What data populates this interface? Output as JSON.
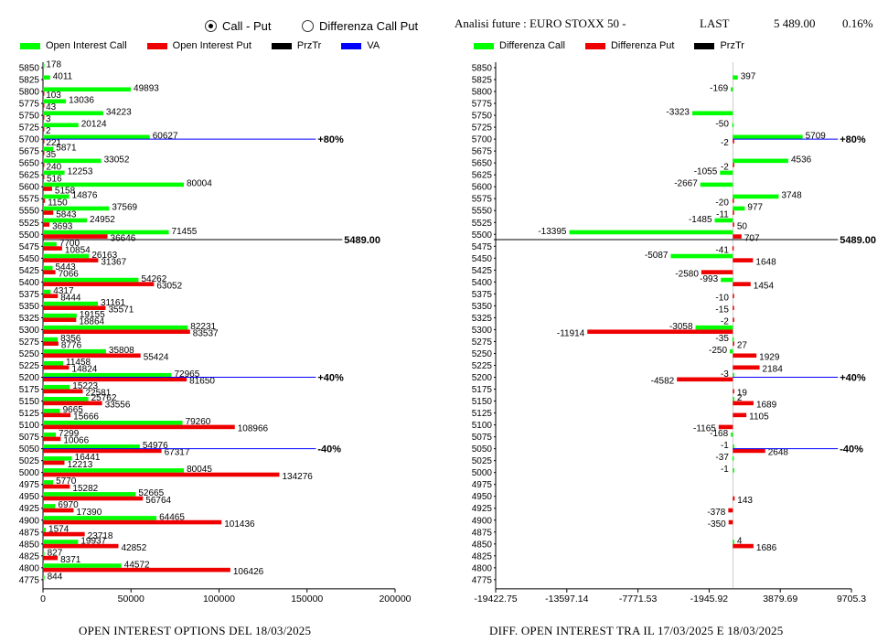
{
  "controls": {
    "radio_call_put": "Call - Put",
    "radio_diff": "Differenza Call Put",
    "selected": "Call - Put"
  },
  "header": {
    "title": "Analisi future : EURO STOXX 50 -",
    "last_label": "LAST",
    "last_value": "5 489.00",
    "change": "0.16%"
  },
  "legend_left": [
    {
      "label": "Open Interest Call",
      "color": "#00ff00"
    },
    {
      "label": "Open Interest Put",
      "color": "#ee0000"
    },
    {
      "label": "PrzTr",
      "color": "#000000"
    },
    {
      "label": "VA",
      "color": "#0000ff"
    }
  ],
  "legend_right": [
    {
      "label": "Differenza Call",
      "color": "#00ff00"
    },
    {
      "label": "Differenza Put",
      "color": "#ee0000"
    },
    {
      "label": "PrzTr",
      "color": "#000000"
    }
  ],
  "footer": {
    "left": "OPEN INTEREST OPTIONS DEL 18/03/2025",
    "right": "DIFF. OPEN INTEREST TRA IL 17/03/2025 E 18/03/2025"
  },
  "chart_data": [
    {
      "type": "bar",
      "orientation": "horizontal",
      "categories": [
        "5850",
        "5825",
        "5800",
        "5775",
        "5750",
        "5725",
        "5700",
        "5675",
        "5650",
        "5625",
        "5600",
        "5575",
        "5550",
        "5525",
        "5500",
        "5475",
        "5450",
        "5425",
        "5400",
        "5375",
        "5350",
        "5325",
        "5300",
        "5275",
        "5250",
        "5225",
        "5200",
        "5175",
        "5150",
        "5125",
        "5100",
        "5075",
        "5050",
        "5025",
        "5000",
        "4975",
        "4950",
        "4925",
        "4900",
        "4875",
        "4850",
        "4825",
        "4800",
        "4775"
      ],
      "series": [
        {
          "name": "Open Interest Call",
          "color": "#00ff00",
          "values": [
            178,
            4011,
            49893,
            13036,
            34223,
            20124,
            60627,
            5871,
            33052,
            12253,
            80004,
            14876,
            37569,
            24952,
            71455,
            7700,
            26163,
            5443,
            54262,
            4317,
            31161,
            19155,
            82231,
            8356,
            35808,
            11458,
            72965,
            15223,
            25762,
            9665,
            79260,
            7299,
            54976,
            16441,
            80045,
            5770,
            52665,
            6970,
            64465,
            1574,
            19937,
            827,
            44572,
            844
          ]
        },
        {
          "name": "Open Interest Put",
          "color": "#ee0000",
          "values": [
            null,
            null,
            103,
            43,
            3,
            2,
            221,
            35,
            240,
            516,
            5158,
            1150,
            5843,
            3693,
            36646,
            10854,
            31367,
            7066,
            63052,
            8444,
            35571,
            18864,
            83537,
            8776,
            55424,
            14824,
            81650,
            22581,
            33556,
            15666,
            108966,
            10066,
            67317,
            12213,
            134276,
            15282,
            56764,
            17390,
            101436,
            23718,
            42852,
            8371,
            106426,
            null
          ]
        }
      ],
      "markers": [
        {
          "level": "5700",
          "label": "+80%",
          "value": 155000,
          "color": "#0000ff"
        },
        {
          "level": "5489",
          "label": "5489.00",
          "value": 170000,
          "color": "#000000"
        },
        {
          "level": "5200",
          "label": "+40%",
          "value": 155000,
          "color": "#0000ff"
        },
        {
          "level": "5050",
          "label": "-40%",
          "value": 155000,
          "color": "#0000ff"
        }
      ],
      "xticks": [
        "0",
        "50000",
        "100000",
        "150000",
        "200000"
      ],
      "xlim": [
        0,
        200000
      ]
    },
    {
      "type": "bar",
      "orientation": "horizontal",
      "categories": [
        "5850",
        "5825",
        "5800",
        "5775",
        "5750",
        "5725",
        "5700",
        "5675",
        "5650",
        "5625",
        "5600",
        "5575",
        "5550",
        "5525",
        "5500",
        "5475",
        "5450",
        "5425",
        "5400",
        "5375",
        "5350",
        "5325",
        "5300",
        "5275",
        "5250",
        "5225",
        "5200",
        "5175",
        "5150",
        "5125",
        "5100",
        "5075",
        "5050",
        "5025",
        "5000",
        "4975",
        "4950",
        "4925",
        "4900",
        "4875",
        "4850",
        "4825",
        "4800",
        "4775"
      ],
      "series": [
        {
          "name": "Differenza Call",
          "color": "#00ff00",
          "values": [
            null,
            397,
            -169,
            null,
            -3323,
            -50,
            5709,
            null,
            4536,
            -1055,
            -2667,
            3748,
            977,
            -1485,
            -13395,
            null,
            -5087,
            null,
            -993,
            null,
            null,
            null,
            -3058,
            -35,
            -250,
            null,
            -3,
            null,
            2,
            null,
            null,
            -168,
            -1,
            -37,
            -1,
            null,
            null,
            null,
            null,
            null,
            4,
            null,
            null,
            null
          ]
        },
        {
          "name": "Differenza Put",
          "color": "#ee0000",
          "values": [
            null,
            null,
            null,
            null,
            null,
            null,
            -2,
            null,
            -2,
            null,
            null,
            -20,
            -11,
            50,
            707,
            -41,
            1648,
            -2580,
            1454,
            -10,
            -15,
            -2,
            -11914,
            27,
            1929,
            2184,
            -4582,
            19,
            1689,
            1105,
            -1165,
            null,
            2648,
            null,
            null,
            null,
            143,
            -378,
            -350,
            null,
            1686,
            null,
            null,
            null
          ]
        }
      ],
      "markers": [
        {
          "level": "5700",
          "label": "+80%",
          "value": 8600,
          "color": "#0000ff"
        },
        {
          "level": "5489",
          "label": "5489.00",
          "value": 8600,
          "color": "#000000"
        },
        {
          "level": "5200",
          "label": "+40%",
          "value": 8600,
          "color": "#0000ff"
        },
        {
          "level": "5050",
          "label": "-40%",
          "value": 8600,
          "color": "#0000ff"
        }
      ],
      "xticks": [
        "-19422.75",
        "-13597.14",
        "-7771.53",
        "-1945.92",
        "3879.69",
        "9705.3"
      ],
      "xlim": [
        -19422.75,
        9705.3
      ]
    }
  ]
}
